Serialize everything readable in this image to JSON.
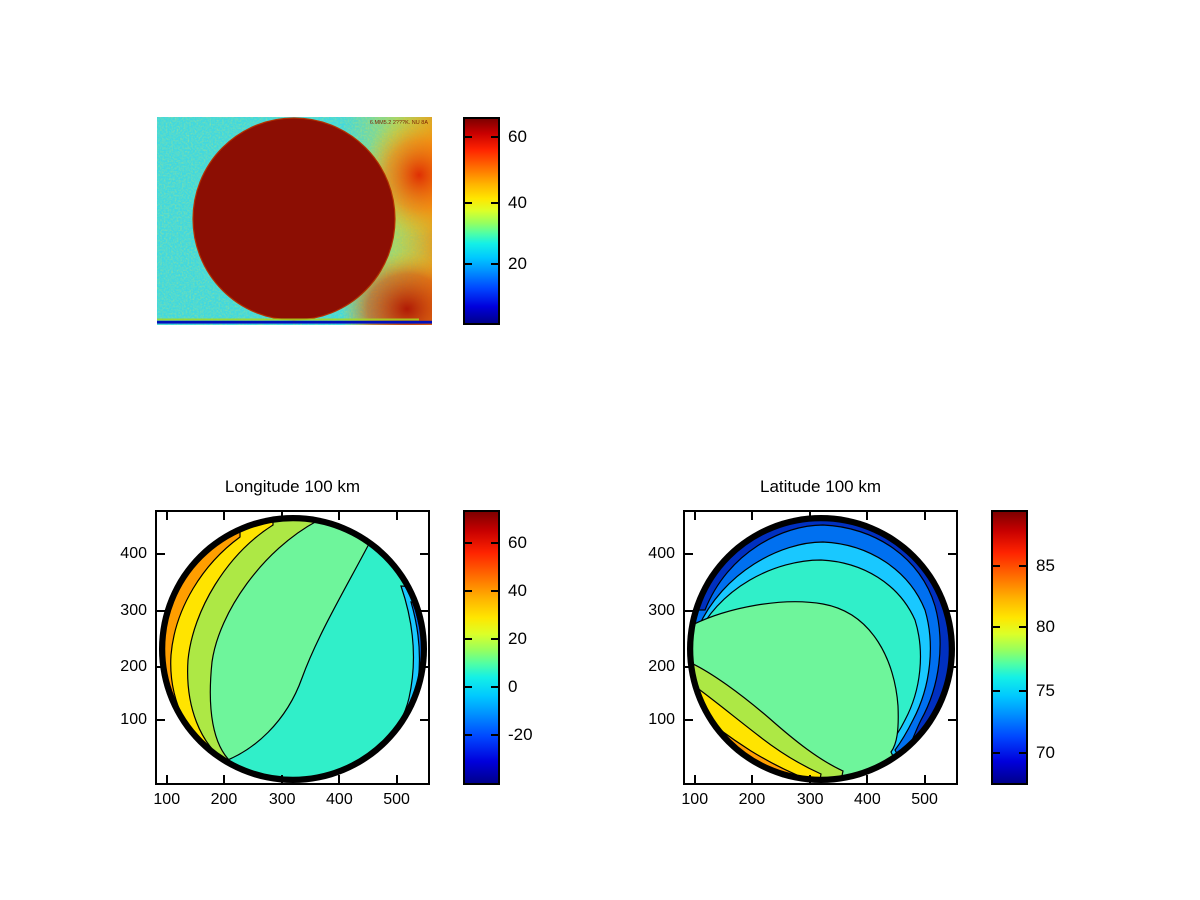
{
  "window": {
    "background": "#ffffff"
  },
  "image_panel": {
    "annotation_text": "6.MM5.2 2???K. NU 8A",
    "colorbar_ticks": [
      "60",
      "40",
      "20"
    ]
  },
  "longitude_plot": {
    "title": "Longitude 100 km",
    "x_tick_labels": [
      "100",
      "200",
      "300",
      "400",
      "500"
    ],
    "y_tick_labels": [
      "400",
      "300",
      "200",
      "100"
    ],
    "colorbar_ticks": [
      "60",
      "40",
      "20",
      "0",
      "-20"
    ]
  },
  "latitude_plot": {
    "title": "Latitude 100 km",
    "x_tick_labels": [
      "100",
      "200",
      "300",
      "400",
      "500"
    ],
    "y_tick_labels": [
      "400",
      "300",
      "200",
      "100"
    ],
    "colorbar_ticks": [
      "85",
      "80",
      "75",
      "70"
    ]
  },
  "colors": {
    "colormap": "jet",
    "disk_rim": "#000000",
    "band_orange": "#FF9E00",
    "band_yellow": "#FFE400",
    "band_yellowgreen": "#ADE845",
    "band_green": "#6EF59B",
    "band_turquoise": "#30EFC9",
    "band_cyan": "#19C8FF",
    "band_blue": "#0070F0",
    "band_darkblue": "#0030C0",
    "image_background_cyan": "#41D8DF",
    "image_disk_darkred": "#8C0E03",
    "image_bottom_line_blue": "#0010BC"
  },
  "chart_data": [
    {
      "type": "heatmap",
      "subtype": "camera-image",
      "title": "",
      "description": "Infrared/coronagraph style image: large saturated dark-red disk (value > 60) slightly left of center on a noisy cyan background (~25), warm yellow-to-red glow along the right edge, thin dark-blue scan line along the bottom, tiny embedded annotation text at top right.",
      "colorbar": {
        "ticks": [
          20,
          40,
          60
        ],
        "range_approx": [
          1,
          66
        ],
        "colormap": "jet",
        "position": "right"
      },
      "grid": false
    },
    {
      "type": "heatmap",
      "subtype": "filled-contour",
      "title": "Longitude 100 km",
      "xlabel": "",
      "ylabel": "",
      "x_ticks": [
        100,
        200,
        300,
        400,
        500
      ],
      "y_ticks": [
        100,
        200,
        300,
        400
      ],
      "x_range_approx": [
        80,
        560
      ],
      "y_range_approx": [
        20,
        490
      ],
      "colorbar": {
        "ticks": [
          60,
          40,
          20,
          0,
          -20
        ],
        "range_approx": [
          -40,
          73
        ],
        "colormap": "jet",
        "position": "right"
      },
      "shape": "circular planetary disk centered ~(310,250) radius ~240; longitude contour bands sweep diagonally, converging at the black limb",
      "bands_left_to_right": [
        {
          "color": "#FF9E00",
          "value_approx": 50
        },
        {
          "color": "#FFE400",
          "value_approx": 40
        },
        {
          "color": "#ADE845",
          "value_approx": 30
        },
        {
          "color": "#6EF59B",
          "value_approx": 10
        },
        {
          "color": "#30EFC9",
          "value_approx": 0
        },
        {
          "color": "#19C8FF",
          "value_approx": -10
        },
        {
          "color": "#0070F0",
          "value_approx": -20
        },
        {
          "color": "#0030C0",
          "value_approx": -30
        }
      ],
      "grid": false
    },
    {
      "type": "heatmap",
      "subtype": "filled-contour",
      "title": "Latitude 100 km",
      "xlabel": "",
      "ylabel": "",
      "x_ticks": [
        100,
        200,
        300,
        400,
        500
      ],
      "y_ticks": [
        100,
        200,
        300,
        400
      ],
      "x_range_approx": [
        80,
        560
      ],
      "y_range_approx": [
        20,
        490
      ],
      "colorbar": {
        "ticks": [
          85,
          80,
          75,
          70
        ],
        "range_approx": [
          67,
          89
        ],
        "colormap": "jet",
        "position": "right"
      },
      "shape": "circular planetary disk; latitude contour bands run from cold blues at the top limb to warm yellows/oranges at the lower-left limb",
      "bands_top_to_bottom": [
        {
          "color": "#0030C0",
          "value_approx": 70
        },
        {
          "color": "#0070F0",
          "value_approx": 72
        },
        {
          "color": "#19C8FF",
          "value_approx": 74
        },
        {
          "color": "#30EFC9",
          "value_approx": 76
        },
        {
          "color": "#6EF59B",
          "value_approx": 78
        },
        {
          "color": "#ADE845",
          "value_approx": 80
        },
        {
          "color": "#FFE400",
          "value_approx": 82
        },
        {
          "color": "#FF9E00",
          "value_approx": 84
        }
      ],
      "grid": false
    }
  ]
}
